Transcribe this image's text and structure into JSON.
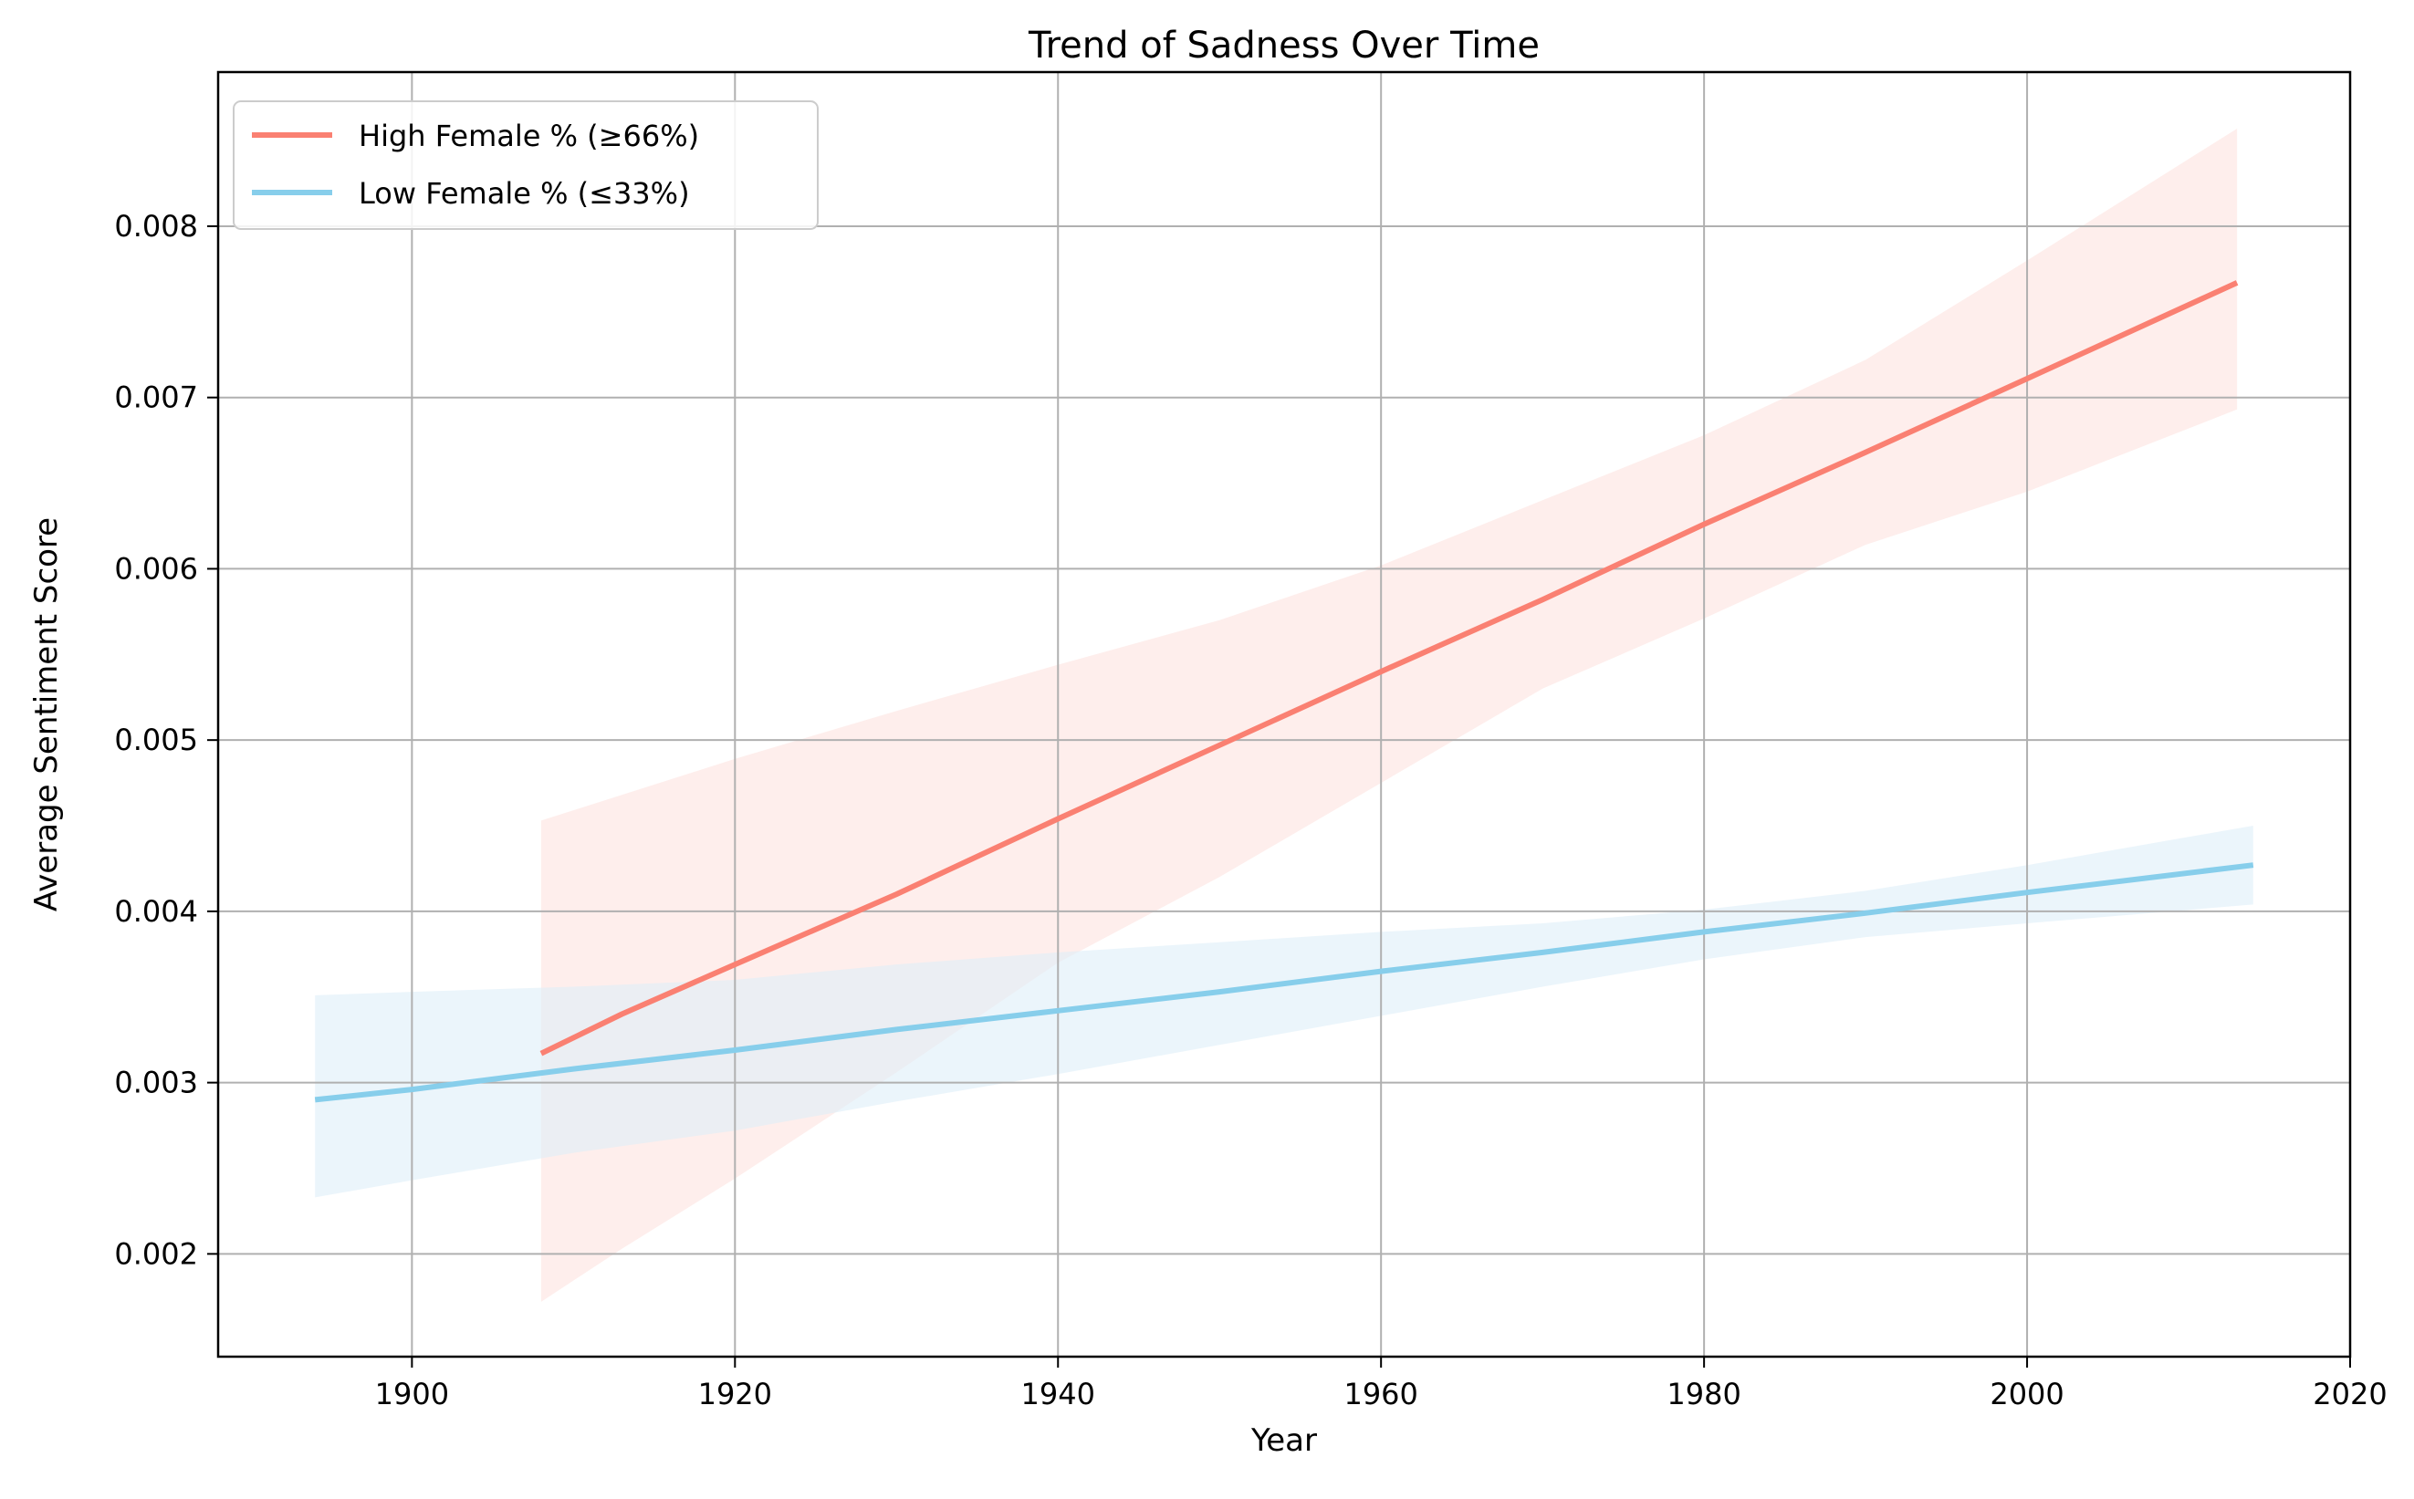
{
  "chart_data": {
    "type": "line",
    "title": "Trend of Sadness Over Time",
    "xlabel": "Year",
    "ylabel": "Average Sentiment Score",
    "xlim": [
      1888,
      2020
    ],
    "ylim": [
      0.0014,
      0.0089
    ],
    "x_ticks": [
      "1900",
      "1920",
      "1940",
      "1960",
      "1980",
      "2000",
      "2020"
    ],
    "y_ticks": [
      "0.002",
      "0.003",
      "0.004",
      "0.005",
      "0.006",
      "0.007",
      "0.008"
    ],
    "grid": true,
    "legend_position": "top-left",
    "series": [
      {
        "name": "High Female % (≥66%)",
        "color": "#fa8072",
        "band_color": "#fde3df",
        "x": [
          1908,
          1913,
          1920,
          1930,
          1940,
          1950,
          1960,
          1970,
          1980,
          1990,
          2000,
          2013
        ],
        "y": [
          0.00317,
          0.0034,
          0.00369,
          0.0041,
          0.00454,
          0.00497,
          0.0054,
          0.00582,
          0.00626,
          0.00668,
          0.00711,
          0.00767
        ],
        "lower": [
          0.00172,
          0.00203,
          0.00244,
          0.00306,
          0.0037,
          0.0042,
          0.00475,
          0.0053,
          0.00571,
          0.00614,
          0.00645,
          0.00693
        ],
        "upper": [
          0.00453,
          0.00468,
          0.00489,
          0.00517,
          0.00544,
          0.0057,
          0.00602,
          0.0064,
          0.00678,
          0.00722,
          0.0078,
          0.00857
        ]
      },
      {
        "name": "Low Female % (≤33%)",
        "color": "#87ceeb",
        "band_color": "#ddeef9",
        "x": [
          1894,
          1900,
          1910,
          1920,
          1930,
          1940,
          1950,
          1960,
          1970,
          1980,
          1990,
          2000,
          2014
        ],
        "y": [
          0.0029,
          0.00296,
          0.00308,
          0.00319,
          0.00331,
          0.00342,
          0.00353,
          0.00365,
          0.00376,
          0.00388,
          0.00399,
          0.00411,
          0.00427
        ],
        "lower": [
          0.00233,
          0.00243,
          0.00259,
          0.00272,
          0.00289,
          0.00305,
          0.00322,
          0.00339,
          0.00356,
          0.00372,
          0.00385,
          0.00393,
          0.00404
        ],
        "upper": [
          0.00351,
          0.00353,
          0.00356,
          0.0036,
          0.00369,
          0.00376,
          0.00382,
          0.00388,
          0.00393,
          0.00401,
          0.00412,
          0.00427,
          0.0045
        ]
      }
    ]
  }
}
